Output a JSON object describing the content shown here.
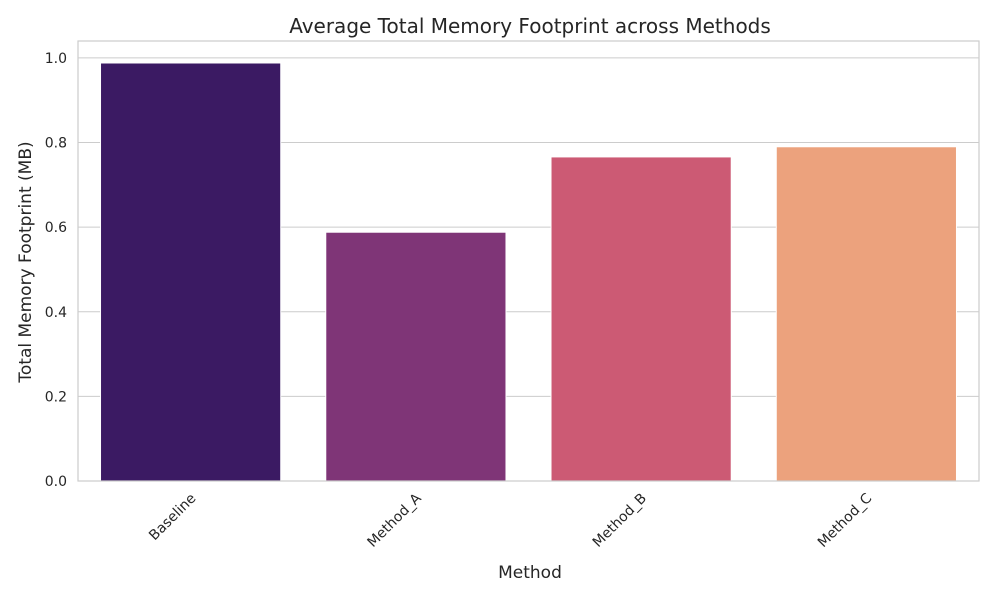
{
  "chart_data": {
    "type": "bar",
    "title": "Average Total Memory Footprint across Methods",
    "xlabel": "Method",
    "ylabel": "Total Memory Footprint (MB)",
    "categories": [
      "Baseline",
      "Method_A",
      "Method_B",
      "Method_C"
    ],
    "values": [
      0.988,
      0.588,
      0.766,
      0.79
    ],
    "colors": [
      "#3b1a63",
      "#7f3577",
      "#cc5a74",
      "#eca27d"
    ],
    "ylim": [
      0,
      1.04
    ],
    "yticks": [
      0.0,
      0.2,
      0.4,
      0.6,
      0.8,
      1.0
    ],
    "ytick_labels": [
      "0.0",
      "0.2",
      "0.4",
      "0.6",
      "0.8",
      "1.0"
    ],
    "grid": "horizontal",
    "background": "#ffffff",
    "grid_color": "#cccccc",
    "axes_edge_color": "#cccccc"
  }
}
